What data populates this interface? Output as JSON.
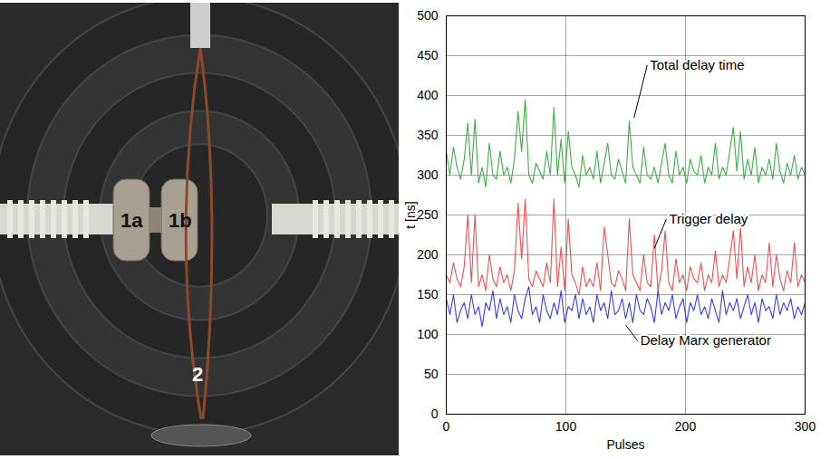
{
  "image_labels": [
    "1a",
    "1b",
    "2"
  ],
  "chart_data": {
    "type": "line",
    "x_label": "Pulses",
    "y_label": "t [ns]",
    "xlim": [
      0,
      300
    ],
    "xticks": [
      0,
      100,
      200,
      300
    ],
    "ylim": [
      0,
      500
    ],
    "yticks": [
      0,
      50,
      100,
      150,
      200,
      250,
      300,
      350,
      400,
      450,
      500
    ],
    "grid": true,
    "x": [
      0,
      3,
      6,
      9,
      12,
      15,
      18,
      21,
      24,
      27,
      30,
      33,
      36,
      39,
      42,
      45,
      48,
      51,
      54,
      57,
      60,
      63,
      66,
      69,
      72,
      75,
      78,
      81,
      84,
      87,
      90,
      93,
      96,
      99,
      102,
      105,
      108,
      111,
      114,
      117,
      120,
      123,
      126,
      129,
      132,
      135,
      138,
      141,
      144,
      147,
      150,
      153,
      156,
      159,
      162,
      165,
      168,
      171,
      174,
      177,
      180,
      183,
      186,
      189,
      192,
      195,
      198,
      201,
      204,
      207,
      210,
      213,
      216,
      219,
      222,
      225,
      228,
      231,
      234,
      237,
      240,
      243,
      246,
      249,
      252,
      255,
      258,
      261,
      264,
      267,
      270,
      273,
      276,
      279,
      282,
      285,
      288,
      291,
      294,
      297,
      300
    ],
    "series": [
      {
        "name": "Total delay time",
        "color": "#3cb043",
        "label": {
          "x": 168,
          "y": 438,
          "to": [
            157,
            372
          ]
        },
        "values": [
          330,
          300,
          335,
          310,
          295,
          320,
          365,
          300,
          370,
          290,
          310,
          285,
          340,
          300,
          295,
          330,
          300,
          310,
          290,
          320,
          380,
          330,
          395,
          300,
          290,
          315,
          305,
          295,
          330,
          300,
          385,
          300,
          345,
          290,
          355,
          310,
          300,
          285,
          325,
          300,
          310,
          295,
          330,
          290,
          315,
          340,
          300,
          295,
          320,
          305,
          290,
          368,
          310,
          300,
          290,
          335,
          300,
          295,
          310,
          290,
          315,
          340,
          300,
          290,
          330,
          300,
          310,
          290,
          320,
          305,
          300,
          325,
          290,
          310,
          300,
          340,
          295,
          310,
          300,
          330,
          360,
          305,
          355,
          295,
          320,
          300,
          335,
          290,
          310,
          300,
          320,
          295,
          340,
          305,
          290,
          315,
          300,
          325,
          295,
          310,
          300
        ]
      },
      {
        "name": "Trigger delay",
        "color": "#f05050",
        "label": {
          "x": 184,
          "y": 245,
          "to": [
            174,
            208
          ]
        },
        "values": [
          175,
          165,
          190,
          170,
          160,
          185,
          250,
          165,
          250,
          160,
          175,
          155,
          200,
          170,
          160,
          185,
          165,
          175,
          155,
          180,
          265,
          195,
          270,
          170,
          160,
          180,
          170,
          160,
          190,
          165,
          270,
          160,
          210,
          155,
          245,
          175,
          165,
          150,
          185,
          160,
          170,
          160,
          190,
          155,
          235,
          200,
          165,
          160,
          180,
          170,
          155,
          245,
          175,
          165,
          155,
          200,
          165,
          160,
          225,
          155,
          180,
          230,
          165,
          155,
          195,
          165,
          175,
          155,
          185,
          170,
          165,
          190,
          155,
          175,
          165,
          205,
          160,
          175,
          165,
          195,
          230,
          170,
          235,
          160,
          185,
          165,
          200,
          155,
          175,
          165,
          215,
          160,
          200,
          170,
          155,
          180,
          165,
          215,
          160,
          175,
          165
        ]
      },
      {
        "name": "Delay Marx generator",
        "color": "#3a3af0",
        "label": {
          "x": 160,
          "y": 92,
          "to": [
            150,
            112
          ]
        },
        "values": [
          145,
          125,
          150,
          115,
          130,
          140,
          120,
          150,
          125,
          135,
          110,
          140,
          130,
          155,
          120,
          145,
          125,
          135,
          115,
          150,
          130,
          120,
          145,
          160,
          125,
          135,
          115,
          150,
          130,
          120,
          140,
          125,
          155,
          115,
          135,
          130,
          150,
          120,
          145,
          125,
          135,
          115,
          150,
          130,
          140,
          120,
          155,
          125,
          130,
          145,
          120,
          140,
          115,
          150,
          130,
          125,
          145,
          135,
          115,
          155,
          125,
          140,
          130,
          150,
          120,
          135,
          145,
          115,
          140,
          130,
          150,
          125,
          135,
          120,
          145,
          130,
          115,
          155,
          125,
          140,
          130,
          145,
          120,
          135,
          150,
          125,
          140,
          115,
          145,
          130,
          135,
          120,
          150,
          125,
          140,
          130,
          145,
          120,
          135,
          125,
          140
        ]
      }
    ]
  }
}
